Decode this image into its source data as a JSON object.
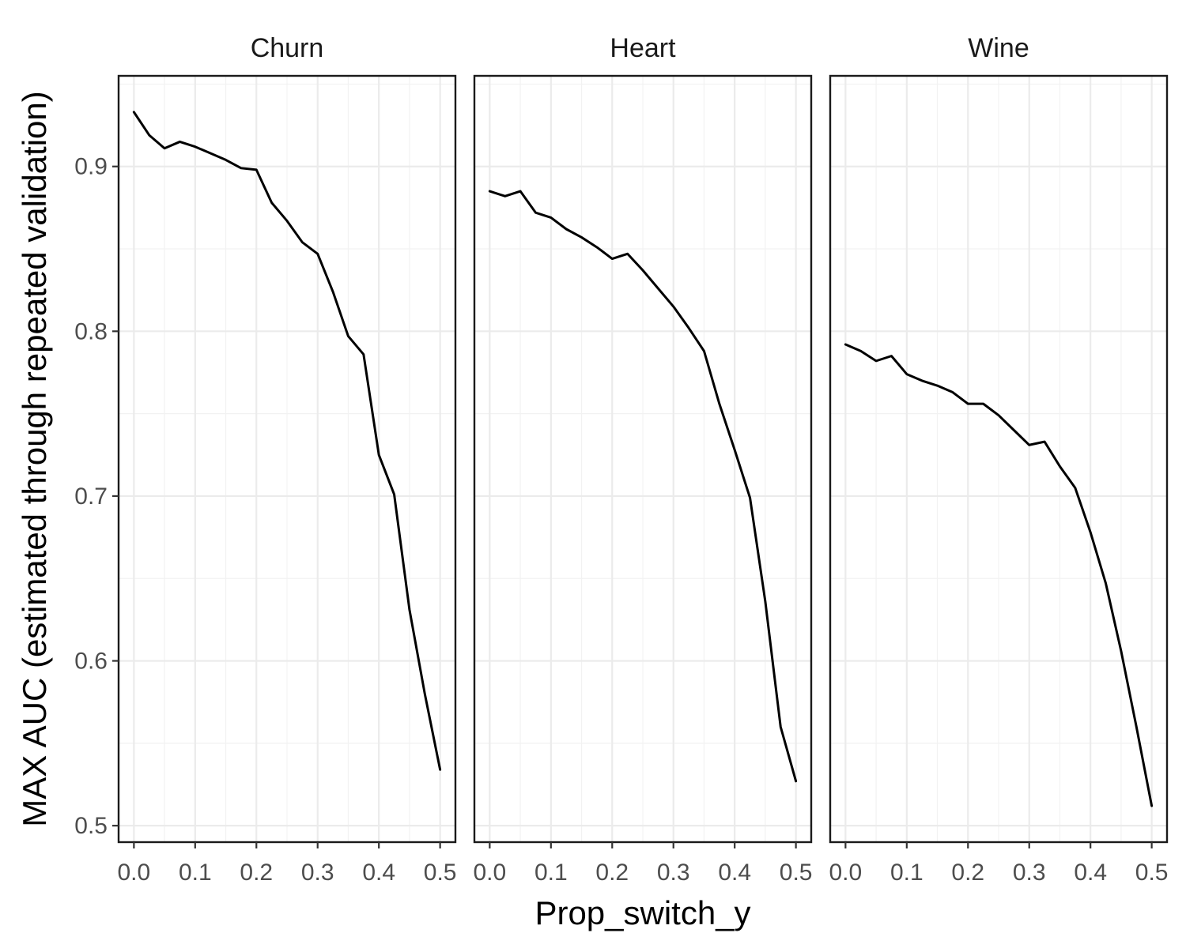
{
  "chart_data": {
    "type": "line",
    "xlabel": "Prop_switch_y",
    "ylabel": "MAX AUC (estimated through repeated validation)",
    "xlim": [
      -0.025,
      0.525
    ],
    "ylim": [
      0.49,
      0.955
    ],
    "x_ticks": [
      "0.0",
      "0.1",
      "0.2",
      "0.3",
      "0.4",
      "0.5"
    ],
    "x_tick_values": [
      0.0,
      0.1,
      0.2,
      0.3,
      0.4,
      0.5
    ],
    "y_ticks": [
      "0.5",
      "0.6",
      "0.7",
      "0.8",
      "0.9"
    ],
    "y_tick_values": [
      0.5,
      0.6,
      0.7,
      0.8,
      0.9
    ],
    "grid": true,
    "line_color": "#000000",
    "x": [
      0.0,
      0.025,
      0.05,
      0.075,
      0.1,
      0.125,
      0.15,
      0.175,
      0.2,
      0.225,
      0.25,
      0.275,
      0.3,
      0.325,
      0.35,
      0.375,
      0.4,
      0.425,
      0.45,
      0.475,
      0.5
    ],
    "panels": [
      {
        "facet": "Churn",
        "y": [
          0.933,
          0.919,
          0.911,
          0.915,
          0.912,
          0.908,
          0.904,
          0.899,
          0.898,
          0.878,
          0.867,
          0.854,
          0.847,
          0.824,
          0.797,
          0.786,
          0.725,
          0.701,
          0.631,
          0.58,
          0.534
        ]
      },
      {
        "facet": "Heart",
        "y": [
          0.885,
          0.882,
          0.885,
          0.872,
          0.869,
          0.862,
          0.857,
          0.851,
          0.844,
          0.847,
          0.837,
          0.826,
          0.815,
          0.802,
          0.788,
          0.756,
          0.728,
          0.699,
          0.636,
          0.56,
          0.527
        ]
      },
      {
        "facet": "Wine",
        "y": [
          0.792,
          0.788,
          0.782,
          0.785,
          0.774,
          0.77,
          0.767,
          0.763,
          0.756,
          0.756,
          0.749,
          0.74,
          0.731,
          0.733,
          0.718,
          0.705,
          0.678,
          0.647,
          0.606,
          0.56,
          0.512
        ]
      }
    ]
  }
}
